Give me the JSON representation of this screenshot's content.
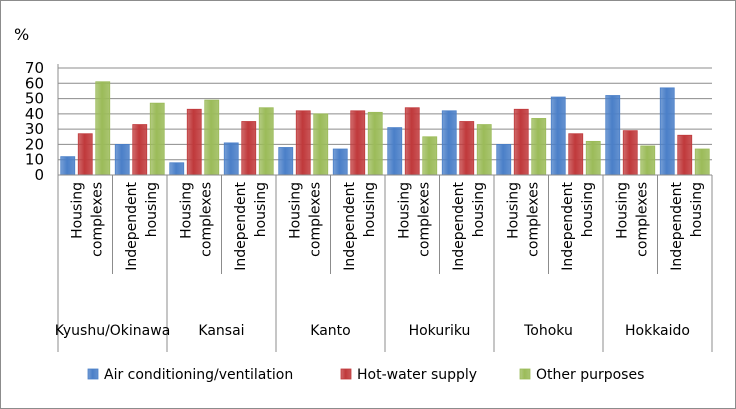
{
  "chart_data": {
    "type": "bar",
    "unit_label": "%",
    "ylim": [
      0,
      70
    ],
    "yticks": [
      0,
      10,
      20,
      30,
      40,
      50,
      60,
      70
    ],
    "grid": true,
    "legend_position": "bottom",
    "regions": [
      "Kyushu/Okinawa",
      "Kansai",
      "Kanto",
      "Hokuriku",
      "Tohoku",
      "Hokkaido"
    ],
    "subcategories": [
      [
        "Housing",
        "complexes"
      ],
      [
        "Independent",
        "housing"
      ]
    ],
    "categories": [
      "Kyushu/Okinawa Housing complexes",
      "Kyushu/Okinawa Independent housing",
      "Kansai Housing complexes",
      "Kansai Independent housing",
      "Kanto Housing complexes",
      "Kanto Independent housing",
      "Hokuriku Housing complexes",
      "Hokuriku Independent housing",
      "Tohoku Housing complexes",
      "Tohoku Independent housing",
      "Hokkaido Housing complexes",
      "Hokkaido Independent housing"
    ],
    "series": [
      {
        "name": "Air conditioning/ventilation",
        "color": "#4a7fc8",
        "values": [
          12,
          20,
          8,
          21,
          18,
          17,
          31,
          42,
          20,
          51,
          52,
          57
        ]
      },
      {
        "name": "Hot-water supply",
        "color": "#c0393b",
        "values": [
          27,
          33,
          43,
          35,
          42,
          42,
          44,
          35,
          43,
          27,
          29,
          26
        ]
      },
      {
        "name": "Other purposes",
        "color": "#9bbb59",
        "values": [
          61,
          47,
          49,
          44,
          40,
          41,
          25,
          33,
          37,
          22,
          19,
          17
        ]
      }
    ]
  }
}
